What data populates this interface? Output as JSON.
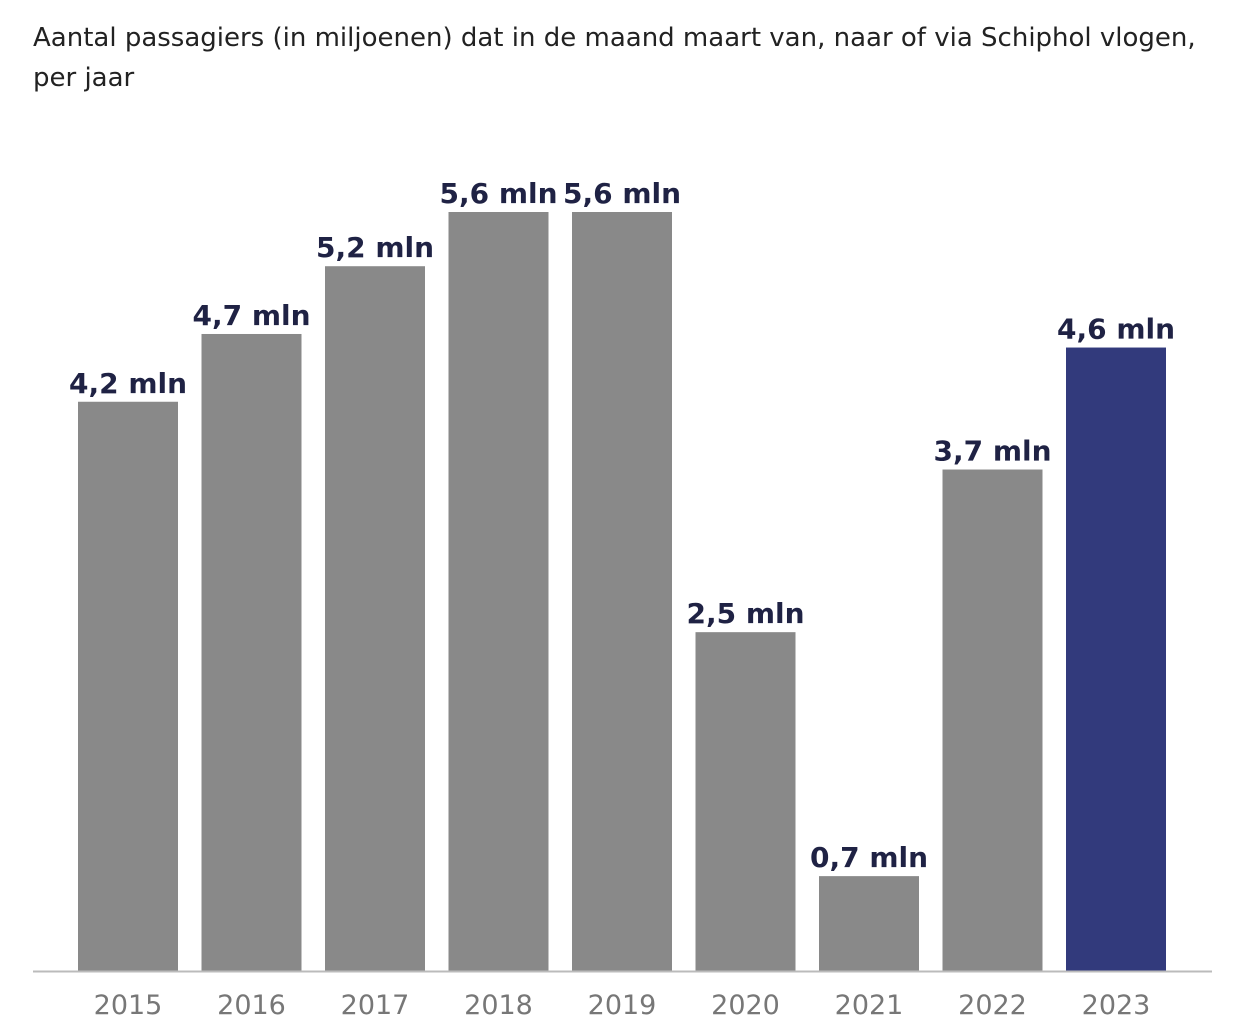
{
  "chart_data": {
    "type": "bar",
    "title": "Aantal passagiers (in miljoenen) dat in de maand maart van, naar of via Schiphol vlogen, per jaar",
    "xlabel": "",
    "ylabel": "",
    "categories": [
      "2015",
      "2016",
      "2017",
      "2018",
      "2019",
      "2020",
      "2021",
      "2022",
      "2023"
    ],
    "values": [
      4.2,
      4.7,
      5.2,
      5.6,
      5.6,
      2.5,
      0.7,
      3.7,
      4.6
    ],
    "value_labels": [
      "4,2 mln",
      "4,7 mln",
      "5,2 mln",
      "5,6 mln",
      "5,6 mln",
      "2,5 mln",
      "0,7 mln",
      "3,7 mln",
      "4,6 mln"
    ],
    "ylim": [
      0,
      5.6
    ],
    "grid": false,
    "legend": "none",
    "colors": {
      "default_bar": "#898989",
      "highlight_bar": "#323a7c",
      "value_label": "#1f2244",
      "tick_label": "#777777",
      "axis_line": "#bbbbbb"
    },
    "highlight_category": "2023"
  }
}
